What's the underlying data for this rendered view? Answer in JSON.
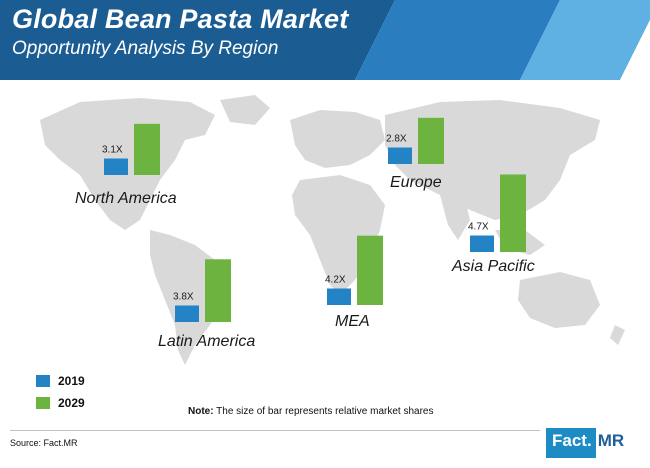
{
  "header": {
    "title": "Global Bean Pasta Market",
    "subtitle": "Opportunity Analysis By Region"
  },
  "colors": {
    "bar_2019": "#2483c5",
    "bar_2029": "#6cb33f",
    "map": "#d9d9d9",
    "header_dark": "#1b5d92",
    "header_light": "#5fb1e3"
  },
  "chart_data": {
    "type": "bar",
    "title": "Global Bean Pasta Market",
    "subtitle": "Opportunity Analysis By Region",
    "categories": [
      "North America",
      "Europe",
      "Asia Pacific",
      "Latin America",
      "MEA"
    ],
    "series": [
      {
        "name": "2019",
        "values": [
          1,
          1,
          1,
          1,
          1
        ]
      },
      {
        "name": "2029",
        "values": [
          3.1,
          2.8,
          4.7,
          3.8,
          4.2
        ]
      }
    ],
    "multipliers": [
      "3.1X",
      "2.8X",
      "4.7X",
      "3.8X",
      "4.2X"
    ],
    "legend": [
      "2019",
      "2029"
    ],
    "legend_position": "bottom-left",
    "grid": false
  },
  "note": {
    "bold": "Note:",
    "text": " The size of bar represents relative market shares"
  },
  "source": "Source: Fact.MR",
  "logo": {
    "left": "Fact.",
    "right": "MR"
  }
}
